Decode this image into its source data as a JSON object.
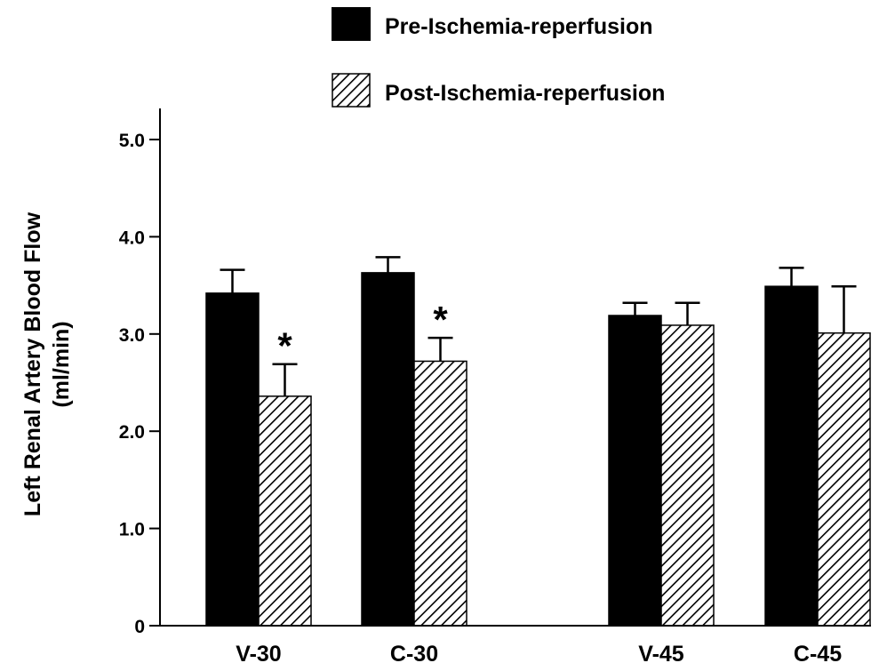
{
  "chart_data": {
    "type": "bar",
    "ylabel": "Left Renal Artery Blood Flow",
    "ylabel_unit": "(ml/min)",
    "ylim": [
      0,
      5.0
    ],
    "yticks": [
      0,
      1.0,
      2.0,
      3.0,
      4.0,
      5.0
    ],
    "ytick_labels": [
      "0",
      "1.0",
      "2.0",
      "3.0",
      "4.0",
      "5.0"
    ],
    "categories": [
      "V-30",
      "C-30",
      "V-45",
      "C-45"
    ],
    "series": [
      {
        "name": "Pre-Ischemia-reperfusion",
        "fill": "solid",
        "color": "#000000",
        "values": [
          3.42,
          3.63,
          3.19,
          3.49
        ],
        "errors": [
          0.24,
          0.16,
          0.13,
          0.19
        ]
      },
      {
        "name": "Post-Ischemia-reperfusion",
        "fill": "hatched",
        "color": "#000000",
        "values": [
          2.36,
          2.72,
          3.09,
          3.01
        ],
        "errors": [
          0.33,
          0.24,
          0.23,
          0.48
        ]
      }
    ],
    "annotations": [
      {
        "category": "V-30",
        "series": "Post-Ischemia-reperfusion",
        "text": "*"
      },
      {
        "category": "C-30",
        "series": "Post-Ischemia-reperfusion",
        "text": "*"
      }
    ],
    "legend_position": "top",
    "grid": false
  }
}
